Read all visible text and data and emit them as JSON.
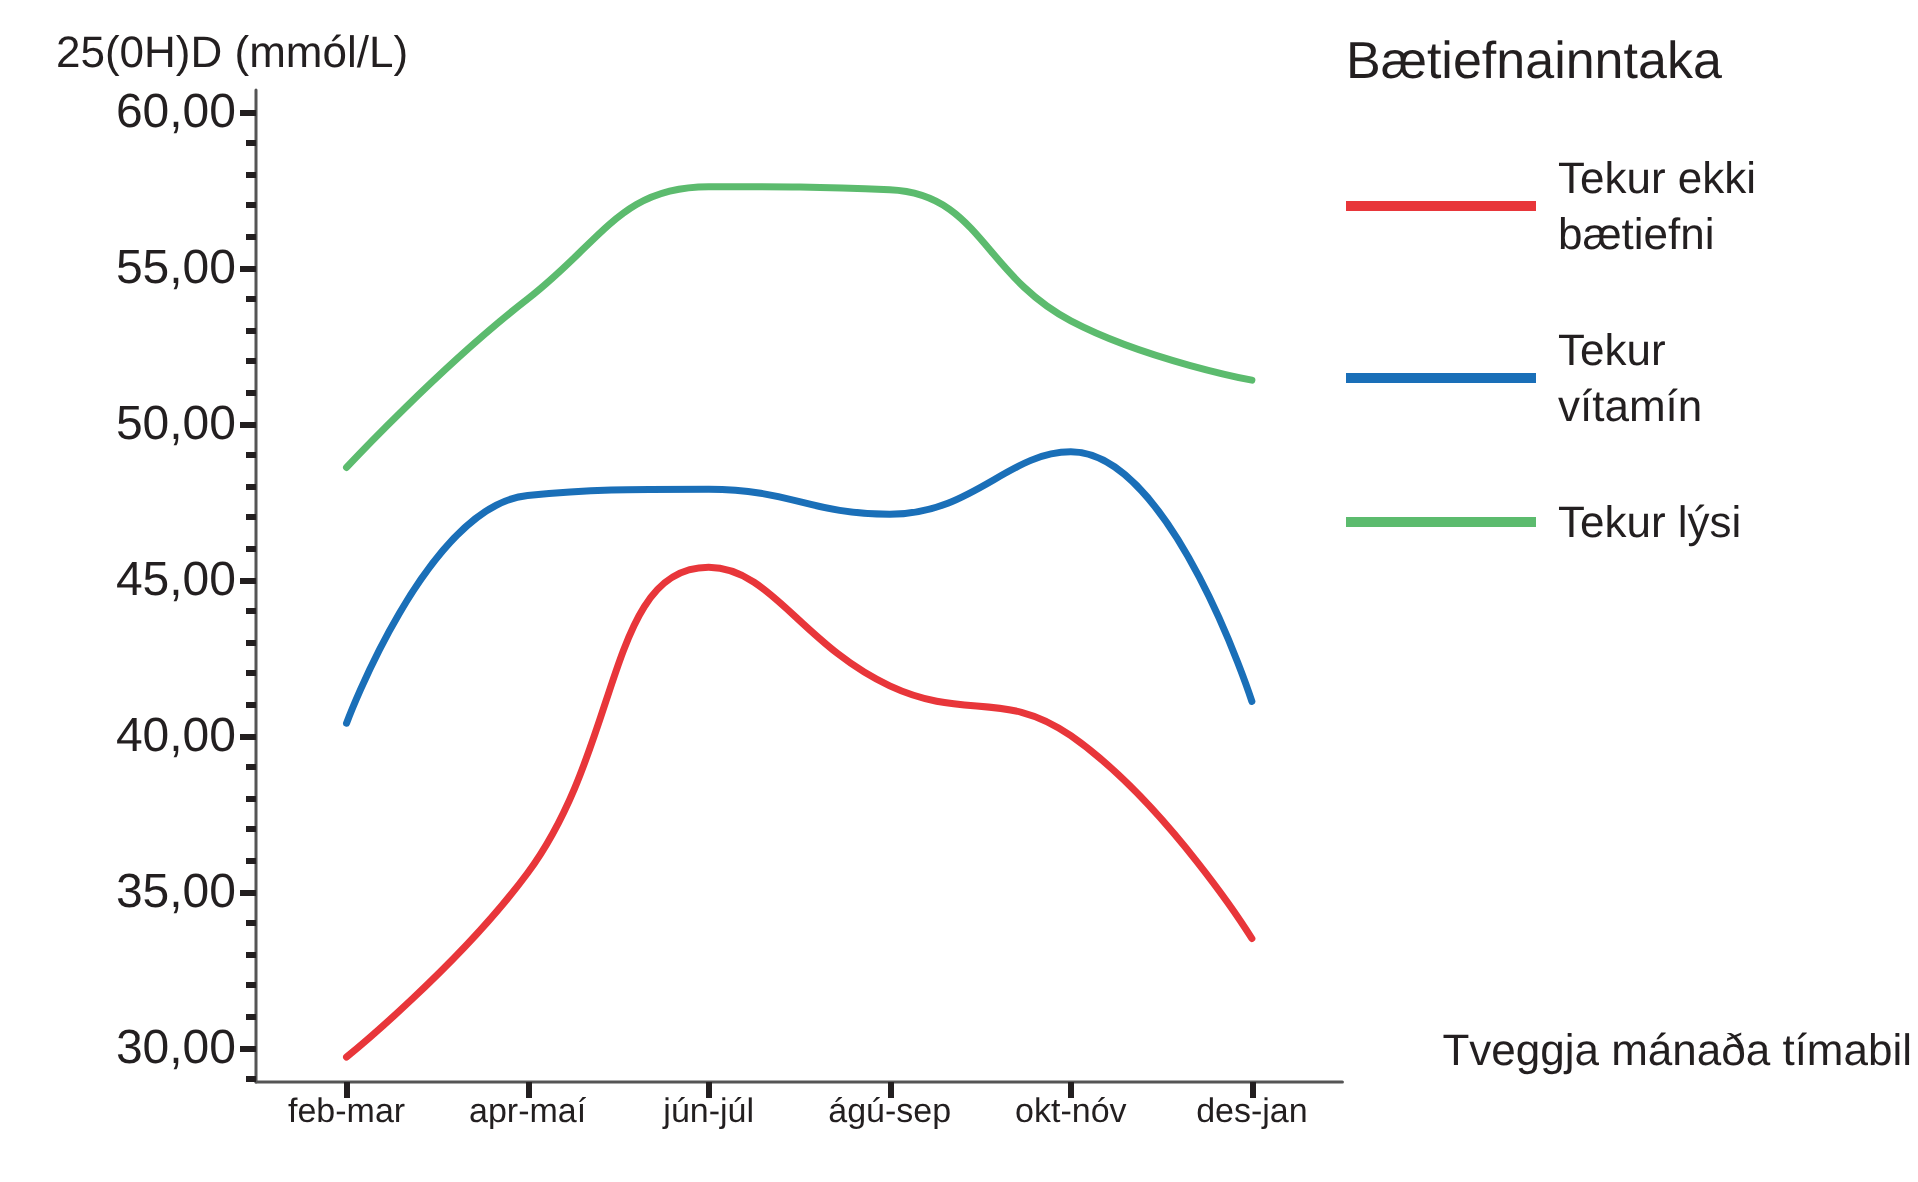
{
  "chart_data": {
    "type": "line",
    "ylabel": "25(0H)D (mmól/L)",
    "xlabel": "Tveggja mánaða tímabil",
    "legend_title": "Bætiefnainntaka",
    "categories": [
      "feb-mar",
      "apr-maí",
      "jún-júl",
      "ágú-sep",
      "okt-nóv",
      "des-jan"
    ],
    "series": [
      {
        "name": "Tekur ekki bætiefni",
        "color": "#e8363a",
        "values": [
          29.7,
          35.6,
          45.4,
          41.6,
          40.0,
          33.5
        ]
      },
      {
        "name": "Tekur vítamín",
        "color": "#1a6fb8",
        "values": [
          40.4,
          47.7,
          47.9,
          47.1,
          49.1,
          41.1
        ]
      },
      {
        "name": "Tekur lýsi",
        "color": "#5cbb6e",
        "values": [
          48.6,
          54.0,
          57.6,
          57.5,
          53.3,
          51.4
        ]
      }
    ],
    "ylim": [
      28.9,
      60.7
    ],
    "yticks": [
      {
        "value": 30,
        "label": "30,00"
      },
      {
        "value": 35,
        "label": "35,00"
      },
      {
        "value": 40,
        "label": "40,00"
      },
      {
        "value": 45,
        "label": "45,00"
      },
      {
        "value": 50,
        "label": "50,00"
      },
      {
        "value": 55,
        "label": "55,00"
      },
      {
        "value": 60,
        "label": "60,00"
      }
    ],
    "grid": false,
    "legend": "top right",
    "marker": "none",
    "line_style": "solid"
  }
}
